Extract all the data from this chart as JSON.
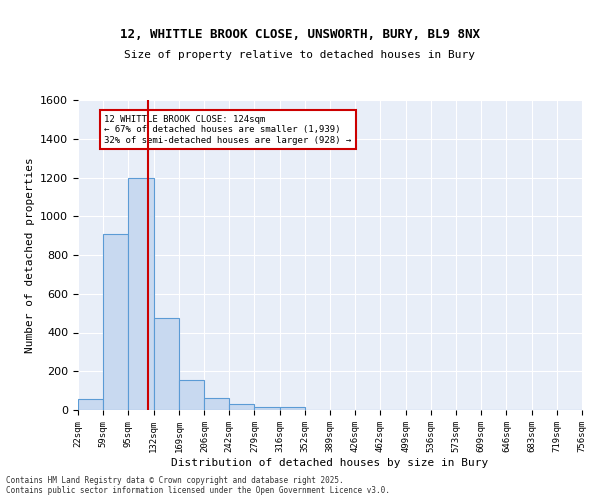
{
  "title1": "12, WHITTLE BROOK CLOSE, UNSWORTH, BURY, BL9 8NX",
  "title2": "Size of property relative to detached houses in Bury",
  "xlabel": "Distribution of detached houses by size in Bury",
  "ylabel": "Number of detached properties",
  "bin_edges": [
    22,
    59,
    95,
    132,
    169,
    206,
    242,
    279,
    316,
    352,
    389,
    426,
    462,
    499,
    536,
    573,
    609,
    646,
    683,
    719,
    756
  ],
  "bar_heights": [
    55,
    910,
    1200,
    475,
    155,
    60,
    30,
    15,
    15,
    0,
    0,
    0,
    0,
    0,
    0,
    0,
    0,
    0,
    0,
    0
  ],
  "bar_color": "#c8d9f0",
  "bar_edgecolor": "#5b9bd5",
  "bg_color": "#e8eef8",
  "grid_color": "#ffffff",
  "red_line_x": 124,
  "annotation_title": "12 WHITTLE BROOK CLOSE: 124sqm",
  "annotation_line1": "← 67% of detached houses are smaller (1,939)",
  "annotation_line2": "32% of semi-detached houses are larger (928) →",
  "annotation_box_color": "#ffffff",
  "annotation_border_color": "#cc0000",
  "red_line_color": "#cc0000",
  "ylim": [
    0,
    1600
  ],
  "yticks": [
    0,
    200,
    400,
    600,
    800,
    1000,
    1200,
    1400,
    1600
  ],
  "footer1": "Contains HM Land Registry data © Crown copyright and database right 2025.",
  "footer2": "Contains public sector information licensed under the Open Government Licence v3.0."
}
